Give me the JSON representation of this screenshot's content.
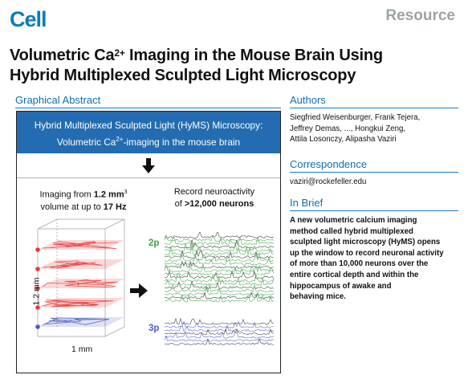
{
  "header": {
    "journal": "Cell",
    "article_type": "Resource"
  },
  "title": {
    "line1_pre": "Volumetric Ca",
    "line1_sup": "2+",
    "line1_post": " Imaging in the Mouse Brain Using",
    "line2": "Hybrid Multiplexed Sculpted Light Microscopy"
  },
  "graphical_abstract": {
    "heading": "Graphical Abstract",
    "banner_line1": "Hybrid Multiplexed Sculpted Light (HyMS) Microscopy:",
    "banner_line2_pre": "Volumetric Ca",
    "banner_line2_sup": "2+",
    "banner_line2_post": "-imaging in the mouse brain",
    "imaging_pre": "Imaging from ",
    "imaging_volume": "1.2 mm",
    "imaging_volume_sup": "3",
    "imaging_line2_pre": "volume at up to ",
    "imaging_rate": "17 Hz",
    "record_line1": "Record neuroactivity",
    "record_pre": "of ",
    "record_count": ">12,000 neurons",
    "depth_label": "1.2 mm",
    "width_label": "1 mm",
    "label_2p": "2p",
    "label_3p": "3p",
    "colors": {
      "banner": "#236cb1",
      "two_photon": "#3ba345",
      "three_photon": "#4a5bc0",
      "red_planes": "#e83a3a"
    }
  },
  "authors": {
    "heading": "Authors",
    "line1": "Siegfried Weisenburger, Frank Tejera,",
    "line2": "Jeffrey Demas, ..., Hongkui Zeng,",
    "line3": "Attila Losonczy, Alipasha Vaziri"
  },
  "correspondence": {
    "heading": "Correspondence",
    "email": "vaziri@rockefeller.edu"
  },
  "in_brief": {
    "heading": "In Brief",
    "lines": [
      "A new volumetric calcium imaging",
      "method called hybrid multiplexed",
      "sculpted light microscopy (HyMS) opens",
      "up the window to record neuronal activity",
      "of more than 10,000 neurons over the",
      "entire cortical depth and within the",
      "hippocampus of awake and",
      "behaving mice."
    ]
  }
}
